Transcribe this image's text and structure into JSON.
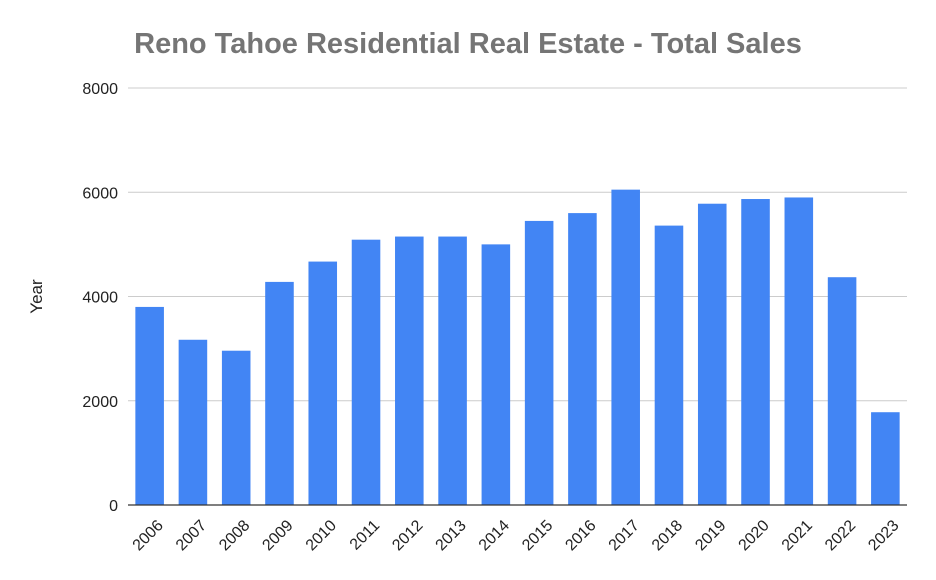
{
  "chart_data": {
    "type": "bar",
    "title": "Reno Tahoe Residential Real Estate - Total Sales",
    "xlabel": "",
    "ylabel": "Year",
    "categories": [
      "2006",
      "2007",
      "2008",
      "2009",
      "2010",
      "2011",
      "2012",
      "2013",
      "2014",
      "2015",
      "2016",
      "2017",
      "2018",
      "2019",
      "2020",
      "2021",
      "2022",
      "2023"
    ],
    "values": [
      3800,
      3170,
      2960,
      4280,
      4670,
      5090,
      5150,
      5150,
      5000,
      5450,
      5600,
      6050,
      5360,
      5780,
      5870,
      5900,
      4370,
      1780
    ],
    "ylim": [
      0,
      8000
    ],
    "yticks": [
      "0",
      "2000",
      "4000",
      "6000",
      "8000"
    ],
    "grid": true,
    "legend": "none",
    "colors": {
      "bar": "#4285f4",
      "grid": "#cccccc",
      "axis": "#333333",
      "title": "#757575"
    }
  }
}
